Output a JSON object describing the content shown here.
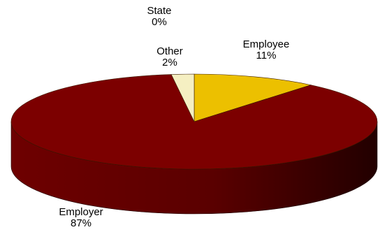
{
  "chart_data": {
    "type": "pie",
    "style": "3d",
    "title": "",
    "slices": [
      {
        "name": "Employee",
        "value": 11,
        "label": "11%",
        "color": "#ecc000"
      },
      {
        "name": "Employer",
        "value": 87,
        "label": "87%",
        "color": "#7c0000"
      },
      {
        "name": "Other",
        "value": 2,
        "label": "2%",
        "color": "#f5efc2"
      },
      {
        "name": "State",
        "value": 0,
        "label": "0%",
        "color": "#ffffff"
      }
    ]
  }
}
